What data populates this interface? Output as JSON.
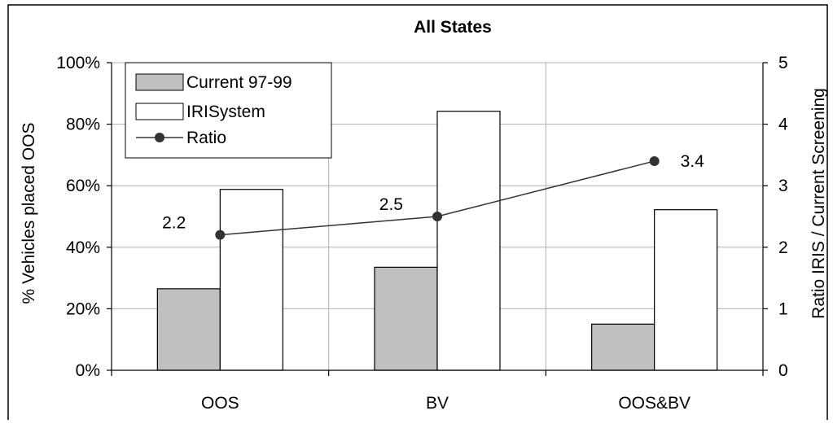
{
  "chart_data": {
    "type": "bar",
    "title": "All States",
    "categories": [
      "OOS",
      "BV",
      "OOS&BV"
    ],
    "series": [
      {
        "name": "Current 97-99",
        "kind": "bar",
        "axis": "left",
        "color": "#c0c0c0",
        "values": [
          0.265,
          0.335,
          0.15
        ]
      },
      {
        "name": "IRISystem",
        "kind": "bar",
        "axis": "left",
        "color": "#ffffff",
        "values": [
          0.588,
          0.842,
          0.522
        ]
      },
      {
        "name": "Ratio",
        "kind": "line",
        "axis": "right",
        "color": "#333333",
        "values": [
          2.2,
          2.5,
          3.4
        ],
        "data_labels": [
          "2.2",
          "2.5",
          "3.4"
        ]
      }
    ],
    "ylabel": "% Vehicles placed OOS",
    "y2label": "Ratio IRIS / Current Screening",
    "ylim": [
      0,
      1
    ],
    "y2lim": [
      0,
      5
    ],
    "yticks": [
      "0%",
      "20%",
      "40%",
      "60%",
      "80%",
      "100%"
    ],
    "y2ticks": [
      "0",
      "1",
      "2",
      "3",
      "4",
      "5"
    ],
    "grid": true,
    "legend": "top-left"
  }
}
